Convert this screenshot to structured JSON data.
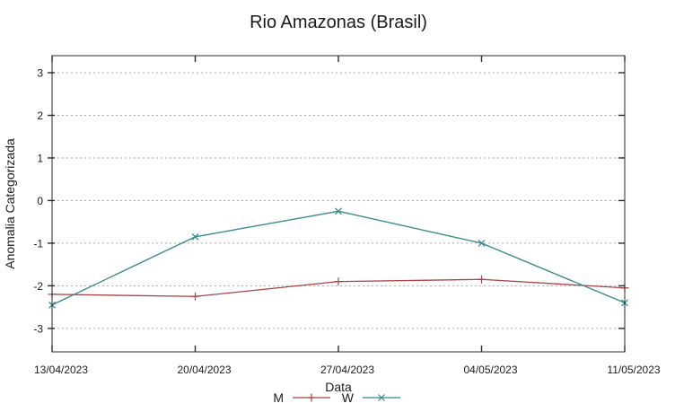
{
  "chart_data": {
    "type": "line",
    "title": "Rio Amazonas (Brasil)",
    "xlabel": "Data",
    "ylabel": "Anomalia Categorizada",
    "categories": [
      "13/04/2023",
      "20/04/2023",
      "27/04/2023",
      "04/05/2023",
      "11/05/2023"
    ],
    "series": [
      {
        "name": "M",
        "marker": "plus",
        "color": "#aa4444",
        "values": [
          -2.2,
          -2.25,
          -1.9,
          -1.85,
          -2.05
        ]
      },
      {
        "name": "W",
        "marker": "cross",
        "color": "#338888",
        "values": [
          -2.45,
          -0.85,
          -0.25,
          -1.0,
          -2.4
        ]
      }
    ],
    "yticks": [
      -3,
      -2,
      -1,
      0,
      1,
      2,
      3
    ],
    "ylim": [
      -3.55,
      3.4
    ],
    "grid": "horizontal dashed lines at integer y values",
    "legend_position": "bottom-center"
  },
  "colors": {
    "series_m": "#aa4444",
    "series_w": "#338888",
    "grid": "#a8a8a8",
    "border": "#2a2a2a",
    "text": "#1a1a1a"
  }
}
